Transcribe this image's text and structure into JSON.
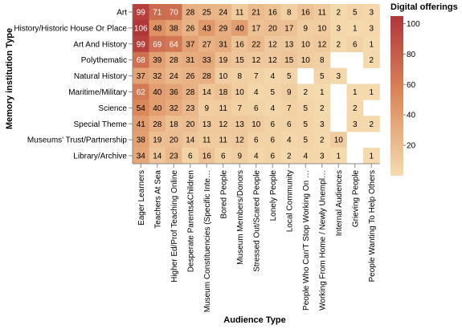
{
  "chart_data": {
    "type": "heatmap",
    "title": "",
    "xlabel": "Audience Type",
    "ylabel": "Memory institution Type",
    "legend_title": "Digital offerings",
    "legend_placement": "right",
    "color_range": [
      0,
      105
    ],
    "legend_ticks": [
      20,
      40,
      60,
      80,
      100
    ],
    "colors": {
      "low": "#f5dcb0",
      "mid": "#dc8a5b",
      "high": "#b0363a",
      "axis": "#000000"
    },
    "x_categories": [
      "Eager Learners",
      "Teachers At Sea",
      "Higher Ed/Prof Teaching Online",
      "Desperate Parents&Children",
      "Museum Constituencies (Specific Inte…",
      "Bored People",
      "Museum Members/Donors",
      "Stressed Out/Scared People",
      "Lonely People",
      "Local Community",
      "People Who Can'T Stop Working On …",
      "Working From Home / Newly Unempl…",
      "Internal Audiences",
      "Grieving People",
      "People Wanting To Help Others"
    ],
    "y_categories": [
      "Art",
      "History/Historic House Or Place",
      "Art And History",
      "Polythematic",
      "Natural History",
      "Maritime/Military",
      "Science",
      "Special Theme",
      "Museums' Trust/Partnership",
      "Library/Archive"
    ],
    "values": [
      [
        99,
        71,
        70,
        28,
        25,
        24,
        11,
        21,
        16,
        8,
        16,
        11,
        2,
        5,
        3
      ],
      [
        106,
        48,
        38,
        26,
        43,
        29,
        40,
        17,
        20,
        17,
        9,
        10,
        3,
        1,
        3
      ],
      [
        99,
        69,
        64,
        37,
        27,
        31,
        16,
        22,
        12,
        13,
        10,
        12,
        2,
        6,
        1
      ],
      [
        68,
        39,
        28,
        31,
        33,
        19,
        15,
        12,
        12,
        15,
        10,
        8,
        null,
        null,
        2
      ],
      [
        37,
        32,
        24,
        26,
        28,
        10,
        8,
        7,
        4,
        5,
        null,
        5,
        3,
        null,
        null
      ],
      [
        62,
        40,
        36,
        28,
        14,
        18,
        10,
        4,
        5,
        9,
        2,
        1,
        null,
        1,
        1
      ],
      [
        54,
        40,
        32,
        23,
        9,
        11,
        7,
        6,
        4,
        7,
        5,
        2,
        null,
        2,
        null
      ],
      [
        41,
        28,
        18,
        20,
        13,
        12,
        13,
        10,
        6,
        6,
        5,
        3,
        null,
        3,
        2
      ],
      [
        38,
        19,
        20,
        14,
        11,
        11,
        12,
        6,
        6,
        4,
        5,
        2,
        10,
        null,
        null
      ],
      [
        34,
        14,
        23,
        6,
        16,
        6,
        9,
        4,
        6,
        2,
        4,
        3,
        1,
        null,
        1
      ]
    ]
  }
}
